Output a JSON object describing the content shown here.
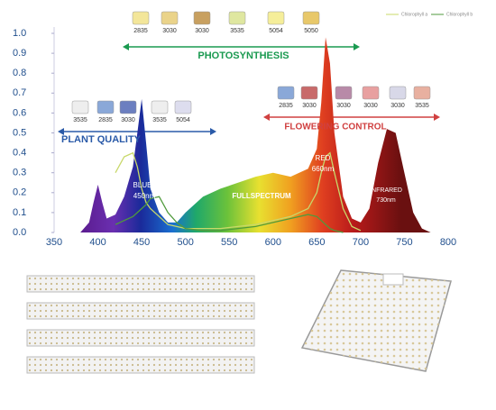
{
  "chart_data": {
    "type": "area",
    "x": [
      380,
      390,
      395,
      400,
      405,
      410,
      420,
      430,
      440,
      445,
      450,
      455,
      460,
      470,
      480,
      490,
      500,
      520,
      540,
      560,
      580,
      600,
      620,
      640,
      650,
      655,
      660,
      665,
      670,
      680,
      690,
      700,
      710,
      720,
      730,
      740,
      750,
      760,
      770,
      780
    ],
    "values": [
      0,
      0.05,
      0.15,
      0.24,
      0.15,
      0.07,
      0.09,
      0.18,
      0.33,
      0.5,
      0.67,
      0.45,
      0.22,
      0.1,
      0.05,
      0.05,
      0.1,
      0.18,
      0.22,
      0.25,
      0.28,
      0.3,
      0.28,
      0.32,
      0.42,
      0.65,
      0.98,
      0.85,
      0.5,
      0.18,
      0.07,
      0.05,
      0.12,
      0.35,
      0.52,
      0.5,
      0.3,
      0.1,
      0.02,
      0
    ],
    "series": [
      {
        "name": "Chlorophyll a",
        "color": "#c8d86a",
        "values": [
          null,
          null,
          null,
          null,
          null,
          null,
          0.3,
          0.38,
          0.4,
          0.33,
          0.22,
          0.15,
          0.12,
          0.08,
          0.04,
          0.03,
          0.02,
          0.02,
          0.02,
          0.03,
          0.04,
          0.06,
          0.08,
          0.12,
          0.2,
          0.3,
          0.38,
          0.4,
          0.3,
          0.12,
          0.03,
          0.01,
          null,
          null,
          null,
          null,
          null,
          null,
          null,
          null
        ]
      },
      {
        "name": "Chlorophyll b",
        "color": "#4f9a3c",
        "values": [
          null,
          null,
          null,
          null,
          null,
          null,
          0.04,
          0.06,
          0.08,
          0.1,
          0.12,
          0.14,
          0.17,
          0.18,
          0.1,
          0.05,
          0.02,
          0.01,
          0.01,
          0.02,
          0.03,
          0.05,
          0.07,
          0.09,
          0.08,
          0.06,
          0.04,
          0.02,
          0.01,
          0,
          null,
          null,
          null,
          null,
          null,
          null,
          null,
          null,
          null,
          null
        ]
      }
    ],
    "xlim": [
      350,
      800
    ],
    "xticks": [
      350,
      400,
      450,
      500,
      550,
      600,
      650,
      700,
      750,
      800
    ],
    "ylim": [
      0,
      1.0
    ],
    "yticks": [
      {
        "value": 0,
        "label": "0.0"
      },
      {
        "value": 0.1,
        "label": "0.1"
      },
      {
        "value": 0.2,
        "label": "0.2"
      },
      {
        "value": 0.3,
        "label": "0.3"
      },
      {
        "value": 0.4,
        "label": "0.4"
      },
      {
        "value": 0.5,
        "label": "0.5"
      },
      {
        "value": 0.6,
        "label": "0.6"
      },
      {
        "value": 0.7,
        "label": "0.7"
      },
      {
        "value": 0.8,
        "label": "0.8"
      },
      {
        "value": 0.9,
        "label": "0.9"
      },
      {
        "value": 1.0,
        "label": "1.0"
      }
    ],
    "grid": false,
    "legend": "upper right",
    "annotations": [
      "PHOTOSYNTHESIS",
      "PLANT QUALITY",
      "FLOWERING CONTROL",
      "BLUE",
      "450nm",
      "FULLSPECTRUM",
      "RED",
      "660nm",
      "INFRARED",
      "730nm"
    ],
    "led_labels": [
      [
        "2835",
        "3030",
        "3030",
        "3535",
        "5054",
        "5050"
      ],
      [
        "3535",
        "2835",
        "3030",
        "3535",
        "5054"
      ],
      [
        "2835",
        "3030",
        "3030",
        "3030",
        "3030",
        "3535"
      ]
    ]
  }
}
